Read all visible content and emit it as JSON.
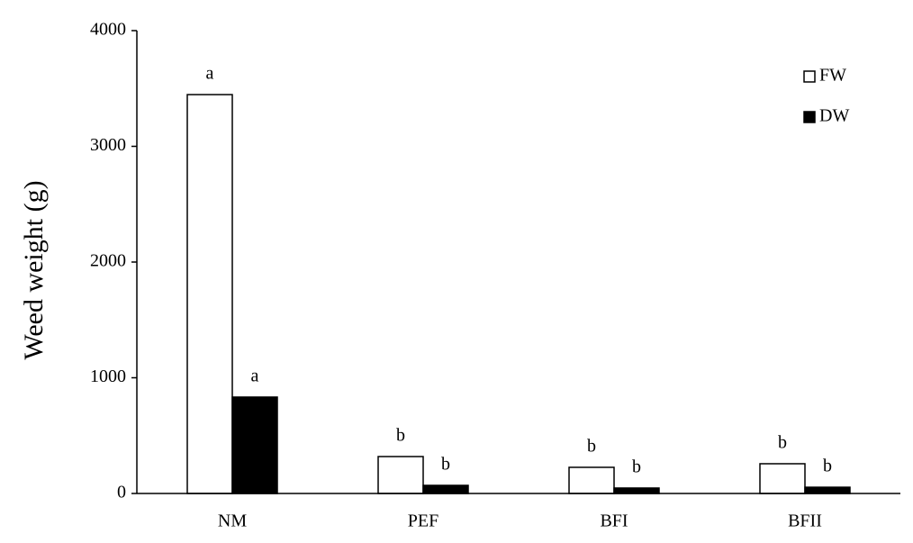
{
  "chart_data": {
    "type": "bar",
    "y_label": "Weed weight (g)",
    "categories": [
      "NM",
      "PEF",
      "BFI",
      "BFII"
    ],
    "series": [
      {
        "name": "FW",
        "color": "#ffffff",
        "values": [
          3447,
          319,
          226,
          257
        ],
        "letters": [
          "a",
          "b",
          "b",
          "b"
        ]
      },
      {
        "name": "DW",
        "color": "#000000",
        "values": [
          833,
          70,
          47,
          54
        ],
        "letters": [
          "a",
          "b",
          "b",
          "b"
        ]
      }
    ],
    "ylim": [
      0,
      4000
    ],
    "yticks": [
      0,
      1000,
      2000,
      3000,
      4000
    ],
    "legend": "top-right"
  }
}
